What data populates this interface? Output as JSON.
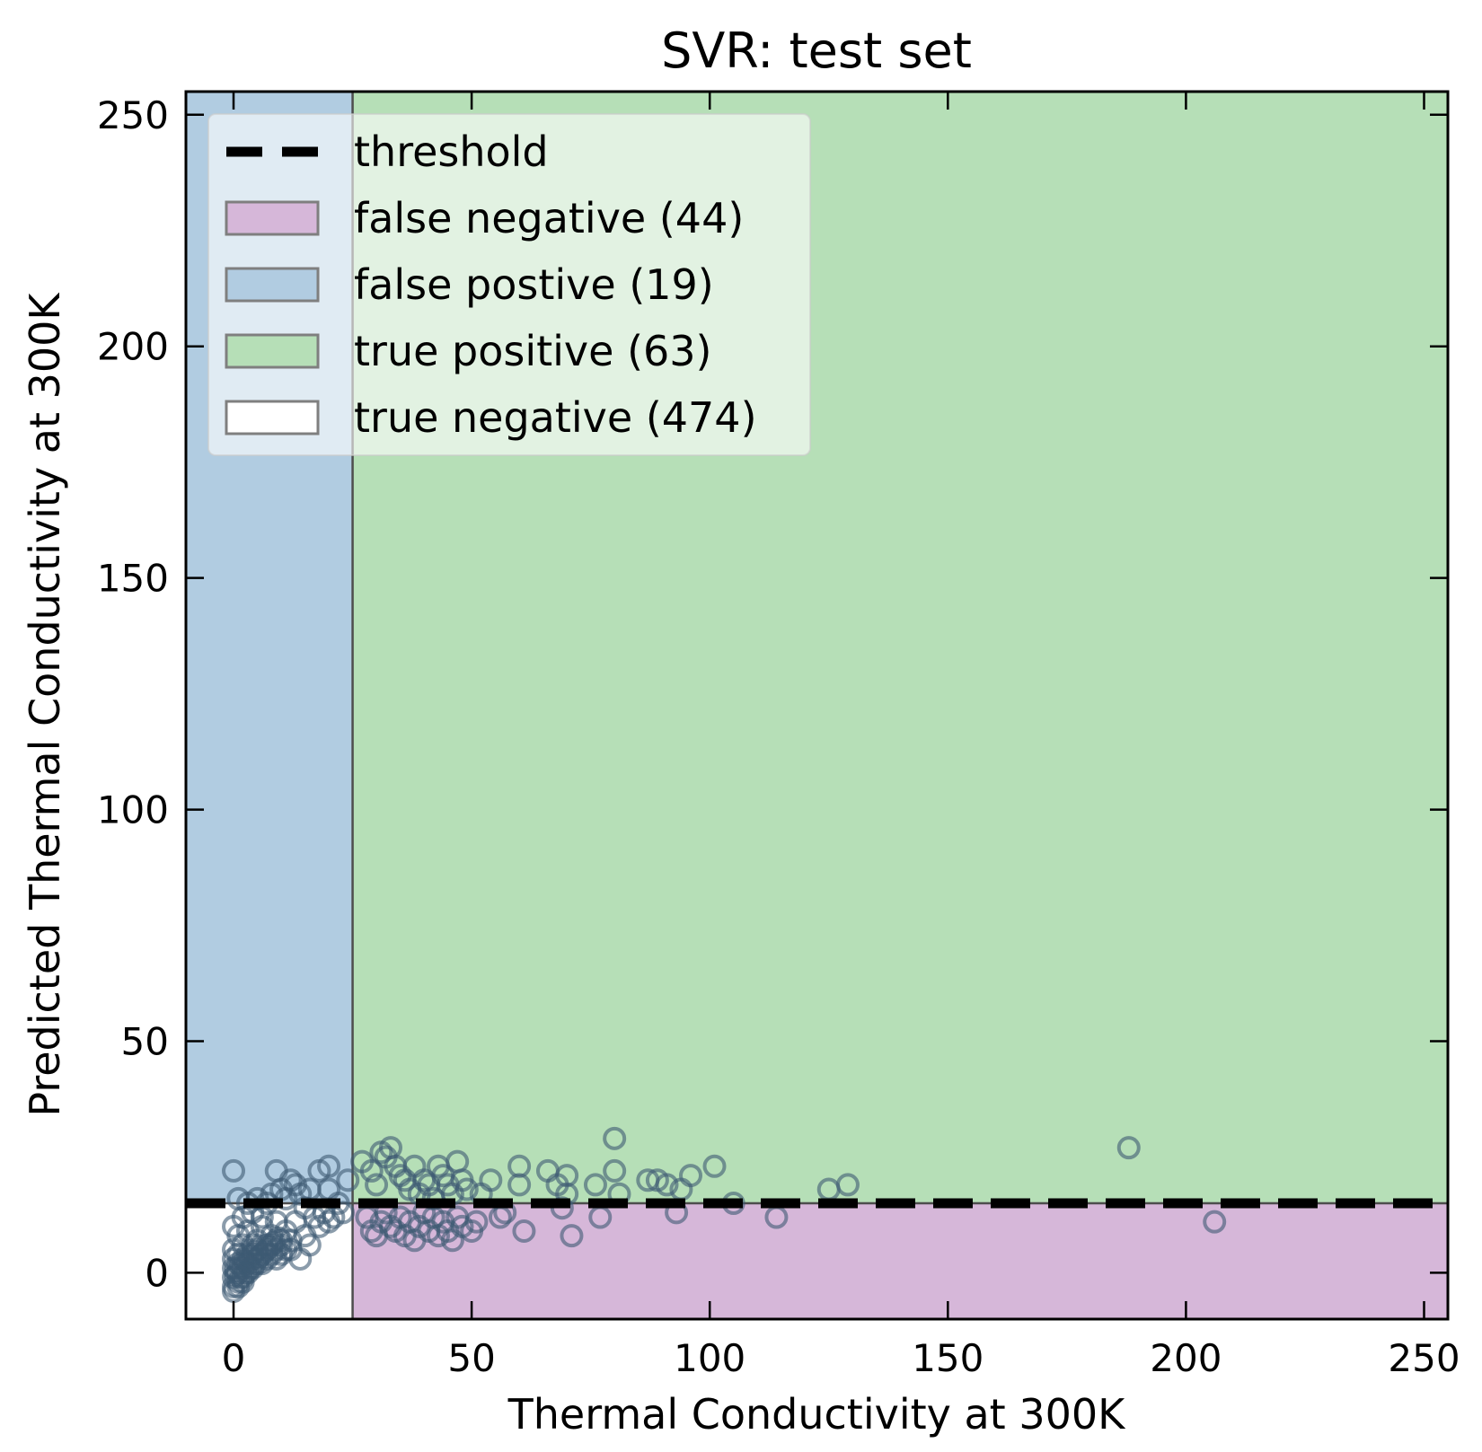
{
  "chart_data": {
    "type": "scatter",
    "title": "SVR: test set",
    "xlabel": "Thermal Conductivity at 300K",
    "ylabel": "Predicted Thermal Conductivity at 300K",
    "xlim": [
      -10,
      255
    ],
    "ylim": [
      -10,
      255
    ],
    "xticks": [
      0,
      50,
      100,
      150,
      200,
      250
    ],
    "yticks": [
      0,
      50,
      100,
      150,
      200,
      250
    ],
    "threshold": {
      "x": 25,
      "y": 15
    },
    "legend_placement": "upper-left",
    "legend": [
      {
        "key": "threshold",
        "label": "threshold"
      },
      {
        "key": "fn",
        "label": "false negative (44)"
      },
      {
        "key": "fp",
        "label": "false postive (19)"
      },
      {
        "key": "tp",
        "label": "true positive (63)"
      },
      {
        "key": "tn",
        "label": "true negative (474)"
      }
    ],
    "colors": {
      "false_negative": "#d6b7d9",
      "false_positive": "#b1cce1",
      "true_positive": "#b6dfb7",
      "true_negative": "#ffffff",
      "marker": "#3d5a73",
      "threshold": "#000000"
    },
    "points": [
      [
        0,
        22
      ],
      [
        1,
        16
      ],
      [
        2,
        12
      ],
      [
        3,
        15
      ],
      [
        4,
        13
      ],
      [
        5,
        16
      ],
      [
        6,
        12
      ],
      [
        7,
        15
      ],
      [
        8,
        17
      ],
      [
        9,
        22
      ],
      [
        10,
        18
      ],
      [
        11,
        16
      ],
      [
        12,
        20
      ],
      [
        13,
        19
      ],
      [
        14,
        17
      ],
      [
        15,
        14
      ],
      [
        16,
        18
      ],
      [
        18,
        22
      ],
      [
        20,
        23
      ],
      [
        20,
        18
      ],
      [
        22,
        15
      ],
      [
        24,
        20
      ],
      [
        27,
        24
      ],
      [
        29,
        22
      ],
      [
        30,
        19
      ],
      [
        31,
        26
      ],
      [
        32,
        25
      ],
      [
        33,
        27
      ],
      [
        34,
        23
      ],
      [
        35,
        21
      ],
      [
        36,
        20
      ],
      [
        37,
        18
      ],
      [
        38,
        23
      ],
      [
        39,
        17
      ],
      [
        40,
        20
      ],
      [
        41,
        19
      ],
      [
        42,
        16
      ],
      [
        43,
        23
      ],
      [
        44,
        21
      ],
      [
        45,
        19
      ],
      [
        46,
        17
      ],
      [
        47,
        24
      ],
      [
        48,
        20
      ],
      [
        49,
        18
      ],
      [
        52,
        17
      ],
      [
        54,
        20
      ],
      [
        60,
        23
      ],
      [
        60,
        19
      ],
      [
        66,
        22
      ],
      [
        68,
        19
      ],
      [
        70,
        21
      ],
      [
        70,
        17
      ],
      [
        76,
        19
      ],
      [
        80,
        29
      ],
      [
        80,
        22
      ],
      [
        81,
        17
      ],
      [
        87,
        20
      ],
      [
        89,
        20
      ],
      [
        91,
        19
      ],
      [
        94,
        18
      ],
      [
        96,
        21
      ],
      [
        101,
        23
      ],
      [
        125,
        18
      ],
      [
        129,
        19
      ],
      [
        188,
        27
      ],
      [
        0,
        10
      ],
      [
        0,
        5
      ],
      [
        1,
        8
      ],
      [
        2,
        6
      ],
      [
        3,
        9
      ],
      [
        4,
        4
      ],
      [
        5,
        7
      ],
      [
        6,
        10
      ],
      [
        7,
        6
      ],
      [
        8,
        8
      ],
      [
        9,
        11
      ],
      [
        10,
        7
      ],
      [
        11,
        9
      ],
      [
        12,
        5
      ],
      [
        13,
        11
      ],
      [
        14,
        3
      ],
      [
        15,
        8
      ],
      [
        16,
        6
      ],
      [
        17,
        12
      ],
      [
        18,
        10
      ],
      [
        19,
        13
      ],
      [
        20,
        11
      ],
      [
        21,
        12
      ],
      [
        23,
        13
      ],
      [
        28,
        12
      ],
      [
        29,
        9
      ],
      [
        30,
        8
      ],
      [
        31,
        11
      ],
      [
        32,
        13
      ],
      [
        33,
        10
      ],
      [
        34,
        9
      ],
      [
        35,
        12
      ],
      [
        36,
        8
      ],
      [
        37,
        11
      ],
      [
        38,
        7
      ],
      [
        39,
        10
      ],
      [
        40,
        13
      ],
      [
        41,
        9
      ],
      [
        42,
        12
      ],
      [
        43,
        8
      ],
      [
        44,
        11
      ],
      [
        45,
        9
      ],
      [
        46,
        7
      ],
      [
        47,
        12
      ],
      [
        48,
        10
      ],
      [
        50,
        9
      ],
      [
        51,
        11
      ],
      [
        56,
        12
      ],
      [
        57,
        13
      ],
      [
        61,
        9
      ],
      [
        69,
        14
      ],
      [
        71,
        8
      ],
      [
        77,
        12
      ],
      [
        93,
        13
      ],
      [
        105,
        15
      ],
      [
        114,
        12
      ],
      [
        206,
        11
      ],
      [
        0,
        -1
      ],
      [
        0,
        1
      ],
      [
        0,
        3
      ],
      [
        0,
        -3
      ],
      [
        1,
        0
      ],
      [
        1,
        2
      ],
      [
        1,
        4
      ],
      [
        1,
        -2
      ],
      [
        2,
        1
      ],
      [
        2,
        3
      ],
      [
        2,
        -1
      ],
      [
        3,
        2
      ],
      [
        3,
        4
      ],
      [
        3,
        0
      ],
      [
        4,
        3
      ],
      [
        4,
        1
      ],
      [
        4,
        6
      ],
      [
        5,
        2
      ],
      [
        5,
        5
      ],
      [
        5,
        3
      ],
      [
        6,
        4
      ],
      [
        6,
        2
      ],
      [
        7,
        3
      ],
      [
        7,
        5
      ],
      [
        8,
        4
      ],
      [
        8,
        6
      ],
      [
        9,
        5
      ],
      [
        9,
        3
      ],
      [
        10,
        4
      ],
      [
        10,
        6
      ],
      [
        11,
        5
      ],
      [
        12,
        7
      ],
      [
        0,
        -4
      ],
      [
        1,
        -3
      ],
      [
        2,
        -2
      ],
      [
        0.5,
        0.5
      ],
      [
        1.5,
        1.5
      ],
      [
        2.5,
        2.5
      ],
      [
        3.5,
        3.5
      ],
      [
        4.5,
        4.5
      ],
      [
        0.5,
        -0.5
      ],
      [
        1.5,
        -1
      ],
      [
        2.5,
        0
      ],
      [
        3.5,
        1
      ],
      [
        4.5,
        2
      ],
      [
        5.5,
        3.5
      ],
      [
        6.5,
        4.5
      ],
      [
        7.5,
        5.5
      ],
      [
        8.5,
        6.5
      ],
      [
        9.5,
        7.5
      ]
    ]
  }
}
